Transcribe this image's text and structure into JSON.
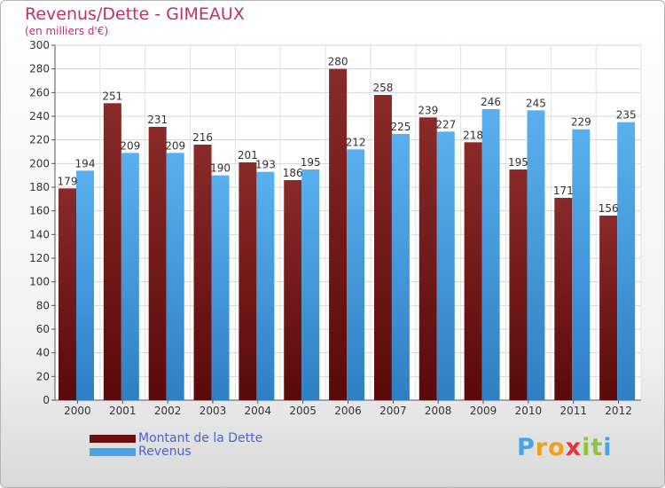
{
  "chart_data": {
    "type": "bar",
    "title": "Revenus/Dette - GIMEAUX",
    "subtitle": "(en milliers d'€)",
    "categories": [
      "2000",
      "2001",
      "2002",
      "2003",
      "2004",
      "2005",
      "2006",
      "2007",
      "2008",
      "2009",
      "2010",
      "2011",
      "2012"
    ],
    "series": [
      {
        "name": "Montant de la Dette",
        "color": "#7a1a1a",
        "values": [
          179,
          251,
          231,
          216,
          201,
          186,
          280,
          258,
          239,
          218,
          195,
          171,
          156
        ]
      },
      {
        "name": "Revenus",
        "color": "#4aa3e6",
        "values": [
          194,
          209,
          209,
          190,
          193,
          195,
          212,
          225,
          227,
          246,
          245,
          229,
          235
        ]
      }
    ],
    "ylim": [
      0,
      300
    ],
    "yticks": [
      0,
      20,
      40,
      60,
      80,
      100,
      120,
      140,
      160,
      180,
      200,
      220,
      240,
      260,
      280,
      300
    ],
    "grid": true,
    "legend_position": "bottom-left"
  },
  "logo": {
    "letters": [
      "P",
      "r",
      "o",
      "x",
      "i",
      "t",
      "i"
    ],
    "colors": [
      "#4aa3e6",
      "#f0a020",
      "#f0a020",
      "#e8343c",
      "#8cc63e",
      "#8cc63e",
      "#4aa3e6"
    ]
  }
}
